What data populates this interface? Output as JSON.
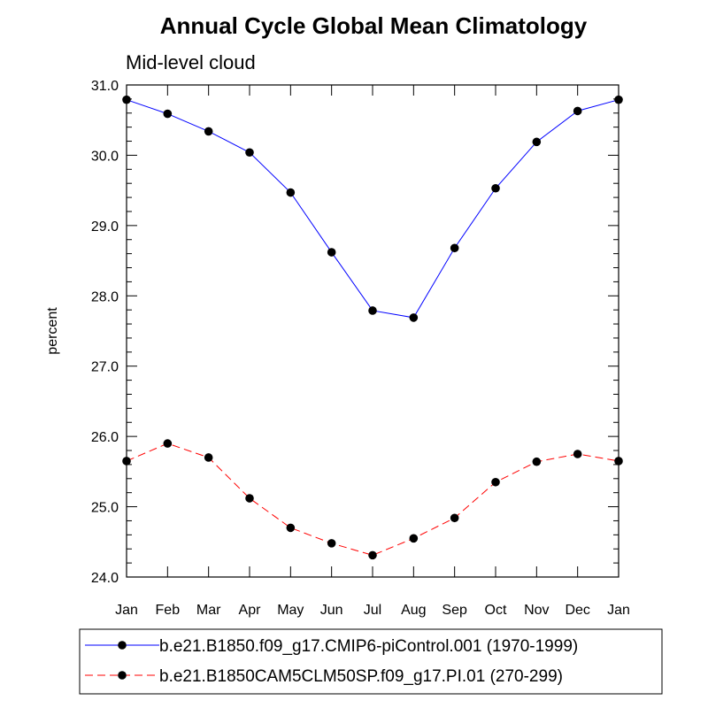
{
  "chart_data": {
    "type": "line",
    "title": "Annual Cycle Global Mean Climatology",
    "subtitle": "Mid-level cloud",
    "xlabel": "",
    "ylabel": "percent",
    "categories": [
      "Jan",
      "Feb",
      "Mar",
      "Apr",
      "May",
      "Jun",
      "Jul",
      "Aug",
      "Sep",
      "Oct",
      "Nov",
      "Dec",
      "Jan"
    ],
    "ylim": [
      24.0,
      31.0
    ],
    "yticks": [
      "24.0",
      "25.0",
      "26.0",
      "27.0",
      "28.0",
      "29.0",
      "30.0",
      "31.0"
    ],
    "grid": false,
    "legend_position": "bottom",
    "series": [
      {
        "name": "b.e21.B1850.f09_g17.CMIP6-piControl.001 (1970-1999)",
        "color": "#0000ff",
        "line_style": "solid",
        "marker": "filled-circle",
        "values": [
          30.79,
          30.59,
          30.34,
          30.04,
          29.47,
          28.62,
          27.79,
          27.69,
          28.68,
          29.53,
          30.19,
          30.63,
          30.79
        ]
      },
      {
        "name": "b.e21.B1850CAM5CLM50SP.f09_g17.PI.01 (270-299)",
        "color": "#ff0000",
        "line_style": "dashed",
        "marker": "filled-circle",
        "values": [
          25.65,
          25.9,
          25.7,
          25.12,
          24.7,
          24.48,
          24.31,
          24.55,
          24.84,
          25.35,
          25.64,
          25.75,
          25.65
        ]
      }
    ]
  }
}
